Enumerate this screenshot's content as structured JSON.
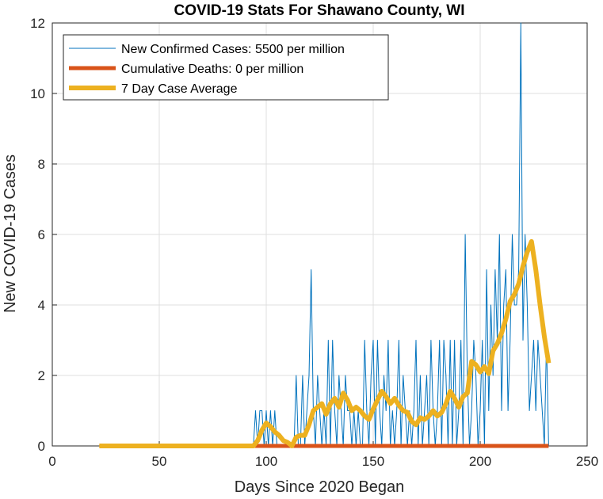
{
  "chart_data": {
    "type": "line",
    "title": "COVID-19 Stats For Shawano County, WI",
    "xlabel": "Days Since 2020 Began",
    "ylabel": "New COVID-19 Cases",
    "xlim": [
      0,
      250
    ],
    "ylim": [
      0,
      12
    ],
    "xticks": [
      0,
      50,
      100,
      150,
      200,
      250
    ],
    "yticks": [
      0,
      2,
      4,
      6,
      8,
      10,
      12
    ],
    "grid": true,
    "legend_position": "top-left",
    "series": [
      {
        "name": "New Confirmed Cases: 5500 per million",
        "color": "#0072BD",
        "x": [
          22,
          94,
          95,
          96,
          97,
          98,
          99,
          100,
          101,
          102,
          103,
          104,
          105,
          106,
          107,
          108,
          109,
          110,
          111,
          112,
          113,
          114,
          115,
          116,
          117,
          118,
          119,
          120,
          121,
          122,
          123,
          124,
          125,
          126,
          127,
          128,
          129,
          130,
          131,
          132,
          133,
          134,
          135,
          136,
          137,
          138,
          139,
          140,
          141,
          142,
          143,
          144,
          145,
          146,
          147,
          148,
          149,
          150,
          151,
          152,
          153,
          154,
          155,
          156,
          157,
          158,
          159,
          160,
          161,
          162,
          163,
          164,
          165,
          166,
          167,
          168,
          169,
          170,
          171,
          172,
          173,
          174,
          175,
          176,
          177,
          178,
          179,
          180,
          181,
          182,
          183,
          184,
          185,
          186,
          187,
          188,
          189,
          190,
          191,
          192,
          193,
          194,
          195,
          196,
          197,
          198,
          199,
          200,
          201,
          202,
          203,
          204,
          205,
          206,
          207,
          208,
          209,
          210,
          211,
          212,
          213,
          214,
          215,
          216,
          217,
          218,
          219,
          220,
          221,
          222,
          223,
          224,
          225,
          226,
          227,
          228,
          229,
          230,
          231,
          232
        ],
        "values": [
          0,
          0,
          1,
          0,
          1,
          1,
          0,
          1,
          0,
          1,
          0,
          1,
          0,
          0,
          0,
          0,
          0,
          0,
          0,
          0,
          0,
          2,
          0,
          0,
          2,
          0,
          1,
          2,
          5,
          1,
          0,
          2,
          1,
          0,
          1,
          0,
          3,
          0,
          3,
          1,
          0,
          2,
          1,
          0,
          2,
          1,
          1,
          0,
          1,
          0,
          1,
          0,
          0,
          3,
          1,
          0,
          2,
          3,
          0,
          3,
          1,
          0,
          2,
          1,
          3,
          0,
          1,
          0,
          1,
          3,
          0,
          2,
          1,
          0,
          1,
          0,
          1,
          3,
          0,
          2,
          0,
          1,
          2,
          0,
          3,
          1,
          0,
          1,
          3,
          0,
          3,
          2,
          0,
          3,
          0,
          3,
          0,
          1,
          3,
          0,
          6,
          2,
          0,
          1,
          3,
          2,
          0,
          1,
          3,
          0,
          5,
          1,
          4,
          2,
          5,
          3,
          6,
          1,
          4,
          5,
          1,
          3,
          6,
          4,
          4,
          5,
          12,
          3,
          6,
          4,
          1,
          2,
          3,
          1,
          3,
          2,
          1,
          0,
          3,
          0
        ]
      },
      {
        "name": "Cumulative Deaths: 0 per million",
        "color": "#D95319",
        "x": [
          22,
          232
        ],
        "values": [
          0,
          0
        ]
      },
      {
        "name": "7 Day Case Average",
        "color": "#EDB120",
        "x": [
          22,
          94,
          96,
          98,
          100,
          102,
          104,
          106,
          108,
          110,
          112,
          114,
          116,
          118,
          120,
          122,
          124,
          126,
          128,
          130,
          132,
          134,
          136,
          138,
          140,
          142,
          144,
          146,
          148,
          150,
          152,
          154,
          156,
          158,
          160,
          162,
          164,
          166,
          168,
          170,
          172,
          174,
          176,
          178,
          180,
          182,
          184,
          186,
          188,
          190,
          192,
          194,
          196,
          198,
          200,
          202,
          204,
          206,
          208,
          210,
          212,
          214,
          216,
          218,
          220,
          222,
          224,
          226,
          228,
          230,
          232
        ],
        "values": [
          0,
          0,
          0.15,
          0.45,
          0.65,
          0.55,
          0.4,
          0.3,
          0.15,
          0.1,
          0.0,
          0.25,
          0.3,
          0.3,
          0.6,
          1.0,
          1.1,
          1.2,
          0.9,
          1.2,
          1.35,
          1.1,
          1.5,
          1.3,
          1.0,
          1.1,
          1.0,
          0.85,
          0.75,
          1.05,
          1.3,
          1.55,
          1.4,
          1.2,
          1.35,
          1.15,
          1.0,
          0.95,
          0.7,
          0.6,
          0.8,
          0.75,
          0.85,
          1.0,
          0.85,
          0.95,
          1.2,
          1.55,
          1.35,
          1.1,
          1.4,
          1.5,
          2.4,
          2.3,
          2.1,
          2.25,
          2.05,
          2.7,
          2.9,
          3.2,
          3.6,
          4.1,
          4.3,
          4.6,
          5.1,
          5.5,
          5.8,
          5.0,
          4.0,
          3.1,
          2.35
        ]
      }
    ]
  }
}
